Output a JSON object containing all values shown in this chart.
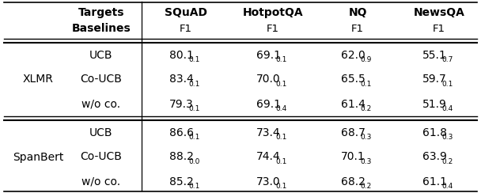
{
  "col_headers_line1": [
    "Targets",
    "SQuAD",
    "HotpotQA",
    "NQ",
    "NewsQA"
  ],
  "col_headers_line2": [
    "Baselines",
    "F1",
    "F1",
    "F1",
    "F1"
  ],
  "row_groups": [
    {
      "group_label": "XLMR",
      "rows": [
        {
          "baseline": "UCB",
          "values": [
            [
              "80.1",
              "0.1"
            ],
            [
              "69.1",
              "0.1"
            ],
            [
              "62.0",
              "0.9"
            ],
            [
              "55.1",
              "0.7"
            ]
          ]
        },
        {
          "baseline": "Co-UCB",
          "values": [
            [
              "83.4",
              "0.1"
            ],
            [
              "70.0",
              "0.1"
            ],
            [
              "65.5",
              "0.1"
            ],
            [
              "59.7",
              "0.1"
            ]
          ]
        },
        {
          "baseline": "w/o co.",
          "values": [
            [
              "79.3",
              "0.1"
            ],
            [
              "69.1",
              "0.4"
            ],
            [
              "61.4",
              "0.2"
            ],
            [
              "51.9",
              "0.4"
            ]
          ]
        }
      ]
    },
    {
      "group_label": "SpanBert",
      "rows": [
        {
          "baseline": "UCB",
          "values": [
            [
              "86.6",
              "0.1"
            ],
            [
              "73.4",
              "0.1"
            ],
            [
              "68.7",
              "0.3"
            ],
            [
              "61.8",
              "0.3"
            ]
          ]
        },
        {
          "baseline": "Co-UCB",
          "values": [
            [
              "88.2",
              "0.0"
            ],
            [
              "74.4",
              "0.1"
            ],
            [
              "70.1",
              "0.3"
            ],
            [
              "63.9",
              "0.2"
            ]
          ]
        },
        {
          "baseline": "w/o co.",
          "values": [
            [
              "85.2",
              "0.1"
            ],
            [
              "73.0",
              "0.1"
            ],
            [
              "68.2",
              "0.2"
            ],
            [
              "61.1",
              "0.4"
            ]
          ]
        }
      ]
    }
  ],
  "background_color": "#ffffff",
  "figsize": [
    6.08,
    2.44
  ],
  "dpi": 100,
  "fs_main": 10,
  "fs_sub": 6.5,
  "fs_header_bold": 10,
  "fs_header_f1": 9.5,
  "fs_group": 10
}
